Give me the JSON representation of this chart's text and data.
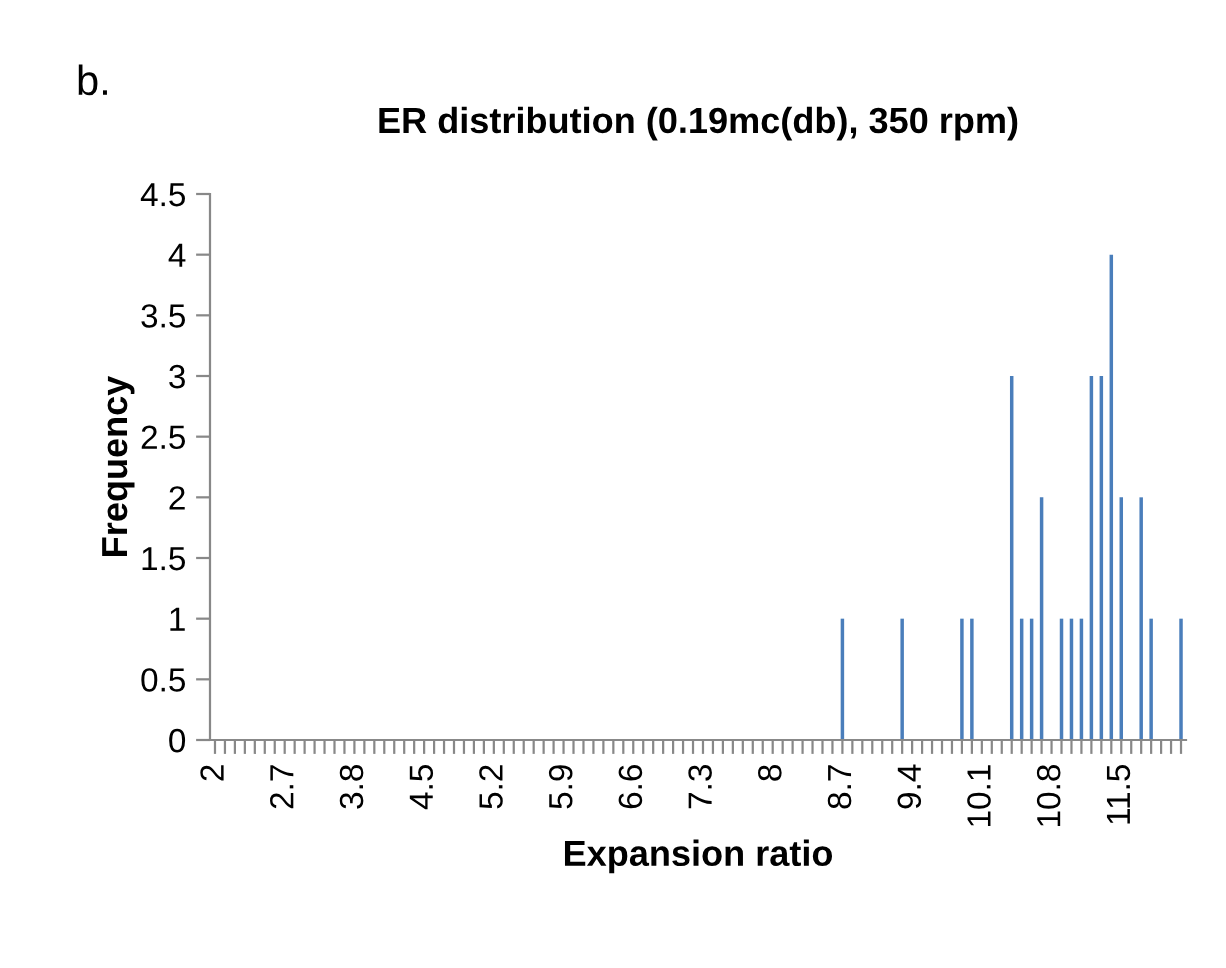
{
  "chart_data": {
    "type": "bar",
    "title": "ER distribution (0.19mc(db), 350 rpm)",
    "xlabel": "Expansion ratio",
    "ylabel": "Frequency",
    "annotations": [
      "b."
    ],
    "categories": [
      "2",
      null,
      null,
      null,
      null,
      null,
      null,
      "2.7",
      null,
      null,
      null,
      null,
      null,
      null,
      "3.8",
      null,
      null,
      null,
      null,
      null,
      null,
      "4.5",
      null,
      null,
      null,
      null,
      null,
      null,
      "5.2",
      null,
      null,
      null,
      null,
      null,
      null,
      "5.9",
      null,
      null,
      null,
      null,
      null,
      null,
      "6.6",
      null,
      null,
      null,
      null,
      null,
      null,
      "7.3",
      null,
      null,
      null,
      null,
      null,
      null,
      "8",
      null,
      null,
      null,
      null,
      null,
      null,
      "8.7",
      null,
      null,
      null,
      null,
      null,
      null,
      "9.4",
      null,
      null,
      null,
      null,
      null,
      null,
      "10.1",
      null,
      null,
      null,
      null,
      null,
      null,
      "10.8",
      null,
      null,
      null,
      null,
      null,
      null,
      "11.5",
      null,
      null,
      null,
      null,
      null,
      null
    ],
    "values": [
      0,
      0,
      0,
      0,
      0,
      0,
      0,
      0,
      0,
      0,
      0,
      0,
      0,
      0,
      0,
      0,
      0,
      0,
      0,
      0,
      0,
      0,
      0,
      0,
      0,
      0,
      0,
      0,
      0,
      0,
      0,
      0,
      0,
      0,
      0,
      0,
      0,
      0,
      0,
      0,
      0,
      0,
      0,
      0,
      0,
      0,
      0,
      0,
      0,
      0,
      0,
      0,
      0,
      0,
      0,
      0,
      0,
      0,
      0,
      0,
      0,
      0,
      0,
      1,
      0,
      0,
      0,
      0,
      0,
      1,
      0,
      0,
      0,
      0,
      0,
      1,
      1,
      0,
      0,
      0,
      3,
      1,
      1,
      2,
      0,
      1,
      1,
      1,
      3,
      3,
      4,
      2,
      0,
      2,
      1,
      0,
      0,
      1
    ],
    "color": "#4a7ebb",
    "ylim": [
      0,
      4.5
    ],
    "yticks": [
      0,
      0.5,
      1,
      1.5,
      2,
      2.5,
      3,
      3.5,
      4,
      4.5
    ],
    "grid": false,
    "legend": false
  }
}
